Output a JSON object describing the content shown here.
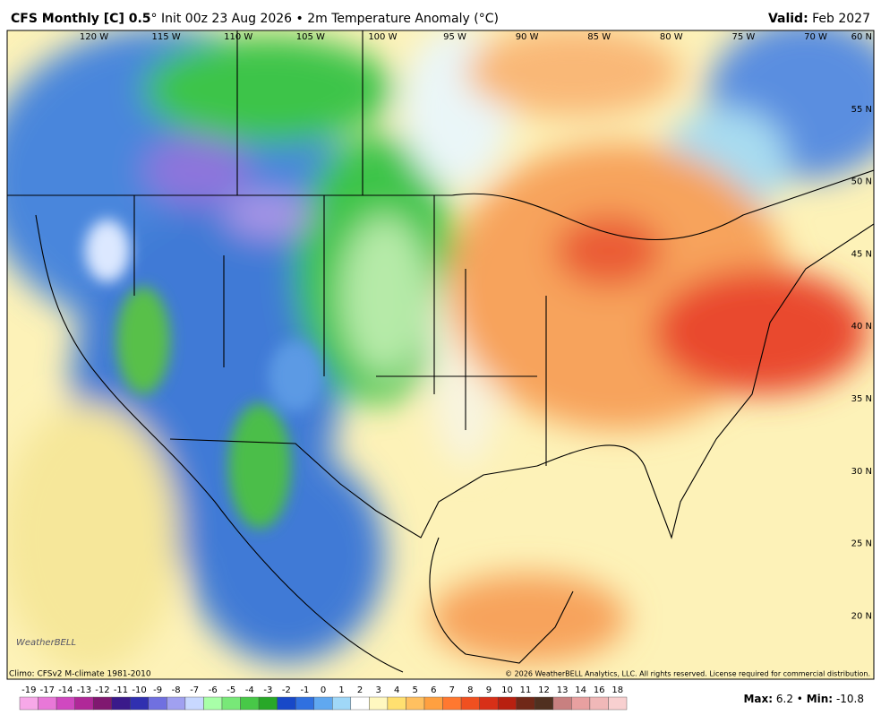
{
  "header": {
    "title_bold": "CFS Monthly [C] 0.5",
    "title_rest": "° Init 00z 23 Aug 2026 • 2m Temperature Anomaly (°C)",
    "valid_label": "Valid:",
    "valid_value": "Feb 2027"
  },
  "map": {
    "lon_labels": [
      "120 W",
      "115 W",
      "110 W",
      "105 W",
      "100 W",
      "95 W",
      "90 W",
      "85 W",
      "80 W",
      "75 W",
      "70 W"
    ],
    "lat_labels": [
      "60 N",
      "55 N",
      "50 N",
      "45 N",
      "40 N",
      "35 N",
      "30 N",
      "25 N",
      "20 N"
    ],
    "logo": "WeatherBELL"
  },
  "footer": {
    "climo": "Climo: CFSv2 M-climate 1981-2010",
    "copyright": "© 2026 WeatherBELL Analytics, LLC. All rights reserved. License required for commercial distribution.",
    "colorbar_labels": [
      "-19",
      "-17",
      "-14",
      "-13",
      "-12",
      "-11",
      "-10",
      "-9",
      "-8",
      "-7",
      "-6",
      "-5",
      "-4",
      "-3",
      "-2",
      "-1",
      "0",
      "1",
      "2",
      "3",
      "4",
      "5",
      "6",
      "7",
      "8",
      "9",
      "10",
      "11",
      "12",
      "13",
      "14",
      "16",
      "18"
    ],
    "max_label": "Max:",
    "max_value": "6.2",
    "sep": "•",
    "min_label": "Min:",
    "min_value": "-10.8"
  }
}
